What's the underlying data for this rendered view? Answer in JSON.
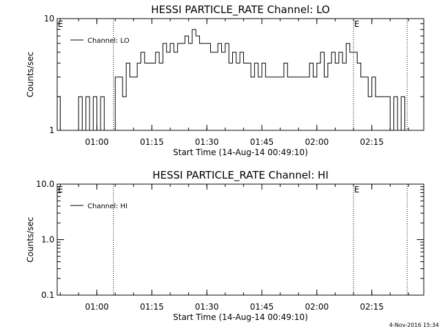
{
  "footer": {
    "timestamp": "4-Nov-2016 15:34"
  },
  "chart_data": [
    {
      "type": "line",
      "title": "HESSI PARTICLE_RATE Channel: LO",
      "xlabel": "Start Time (14-Aug-14 00:49:10)",
      "ylabel": "Counts/sec",
      "y_scale": "log",
      "ylim": [
        1,
        10
      ],
      "y_ticks": [
        1,
        10
      ],
      "y_tick_labels": [
        "1",
        "10"
      ],
      "xlim": [
        "00:49:10",
        "02:29:10"
      ],
      "x_ticks": [
        "01:00",
        "01:15",
        "01:30",
        "01:45",
        "02:00",
        "02:15"
      ],
      "event_markers": [
        {
          "time": "00:49:10",
          "label": "E"
        },
        {
          "time": "02:10:00",
          "label": "E"
        }
      ],
      "dotted_lines": [
        "01:04:30",
        "02:10:00",
        "02:24:40"
      ],
      "legend": {
        "entries": [
          "Channel: LO"
        ],
        "position": "top-left"
      },
      "series": [
        {
          "name": "Channel: LO",
          "x": [
            "00:49:10",
            "00:50:00",
            "00:51:00",
            "00:52:00",
            "00:53:00",
            "00:54:00",
            "00:55:00",
            "00:56:00",
            "00:57:00",
            "00:58:00",
            "00:59:00",
            "01:00:00",
            "01:01:00",
            "01:02:00",
            "01:03:00",
            "01:04:00",
            "01:05:00",
            "01:06:00",
            "01:07:00",
            "01:08:00",
            "01:09:00",
            "01:10:00",
            "01:11:00",
            "01:12:00",
            "01:13:00",
            "01:14:00",
            "01:15:00",
            "01:16:00",
            "01:17:00",
            "01:18:00",
            "01:19:00",
            "01:20:00",
            "01:21:00",
            "01:22:00",
            "01:23:00",
            "01:24:00",
            "01:25:00",
            "01:26:00",
            "01:27:00",
            "01:28:00",
            "01:29:00",
            "01:30:00",
            "01:31:00",
            "01:32:00",
            "01:33:00",
            "01:34:00",
            "01:35:00",
            "01:36:00",
            "01:37:00",
            "01:38:00",
            "01:39:00",
            "01:40:00",
            "01:41:00",
            "01:42:00",
            "01:43:00",
            "01:44:00",
            "01:45:00",
            "01:46:00",
            "01:47:00",
            "01:48:00",
            "01:49:00",
            "01:50:00",
            "01:51:00",
            "01:52:00",
            "01:53:00",
            "01:54:00",
            "01:55:00",
            "01:56:00",
            "01:57:00",
            "01:58:00",
            "01:59:00",
            "02:00:00",
            "02:01:00",
            "02:02:00",
            "02:03:00",
            "02:04:00",
            "02:05:00",
            "02:06:00",
            "02:07:00",
            "02:08:00",
            "02:09:00",
            "02:10:00",
            "02:11:00",
            "02:12:00",
            "02:13:00",
            "02:14:00",
            "02:15:00",
            "02:16:00",
            "02:17:00",
            "02:18:00",
            "02:19:00",
            "02:20:00",
            "02:21:00",
            "02:22:00",
            "02:23:00",
            "02:24:00",
            "02:25:00"
          ],
          "y": [
            2,
            1,
            1,
            1,
            1,
            1,
            2,
            1,
            2,
            1,
            2,
            1,
            2,
            1,
            1,
            1,
            3,
            3,
            2,
            4,
            3,
            3,
            4,
            5,
            4,
            4,
            4,
            5,
            4,
            6,
            5,
            6,
            5,
            6,
            6,
            7,
            6,
            8,
            7,
            6,
            6,
            6,
            5,
            5,
            6,
            5,
            6,
            4,
            5,
            4,
            5,
            4,
            4,
            3,
            4,
            3,
            4,
            3,
            3,
            3,
            3,
            3,
            4,
            3,
            3,
            3,
            3,
            3,
            3,
            4,
            3,
            4,
            5,
            3,
            4,
            5,
            4,
            5,
            4,
            6,
            5,
            5,
            4,
            3,
            3,
            2,
            3,
            2,
            2,
            2,
            2,
            1,
            2,
            1,
            2,
            1,
            1
          ]
        }
      ]
    },
    {
      "type": "line",
      "title": "HESSI PARTICLE_RATE Channel: HI",
      "xlabel": "Start Time (14-Aug-14 00:49:10)",
      "ylabel": "Counts/sec",
      "y_scale": "log",
      "ylim": [
        0.1,
        10.0
      ],
      "y_ticks": [
        0.1,
        1.0,
        10.0
      ],
      "y_tick_labels": [
        "0.1",
        "1.0",
        "10.0"
      ],
      "xlim": [
        "00:49:10",
        "02:29:10"
      ],
      "x_ticks": [
        "01:00",
        "01:15",
        "01:30",
        "01:45",
        "02:00",
        "02:15"
      ],
      "event_markers": [
        {
          "time": "00:49:10",
          "label": "E"
        },
        {
          "time": "02:10:00",
          "label": "E"
        }
      ],
      "dotted_lines": [
        "01:04:30",
        "02:10:00",
        "02:24:40"
      ],
      "legend": {
        "entries": [
          "Channel: HI"
        ],
        "position": "top-left"
      },
      "series": [
        {
          "name": "Channel: HI",
          "x": [],
          "y": []
        }
      ]
    }
  ]
}
